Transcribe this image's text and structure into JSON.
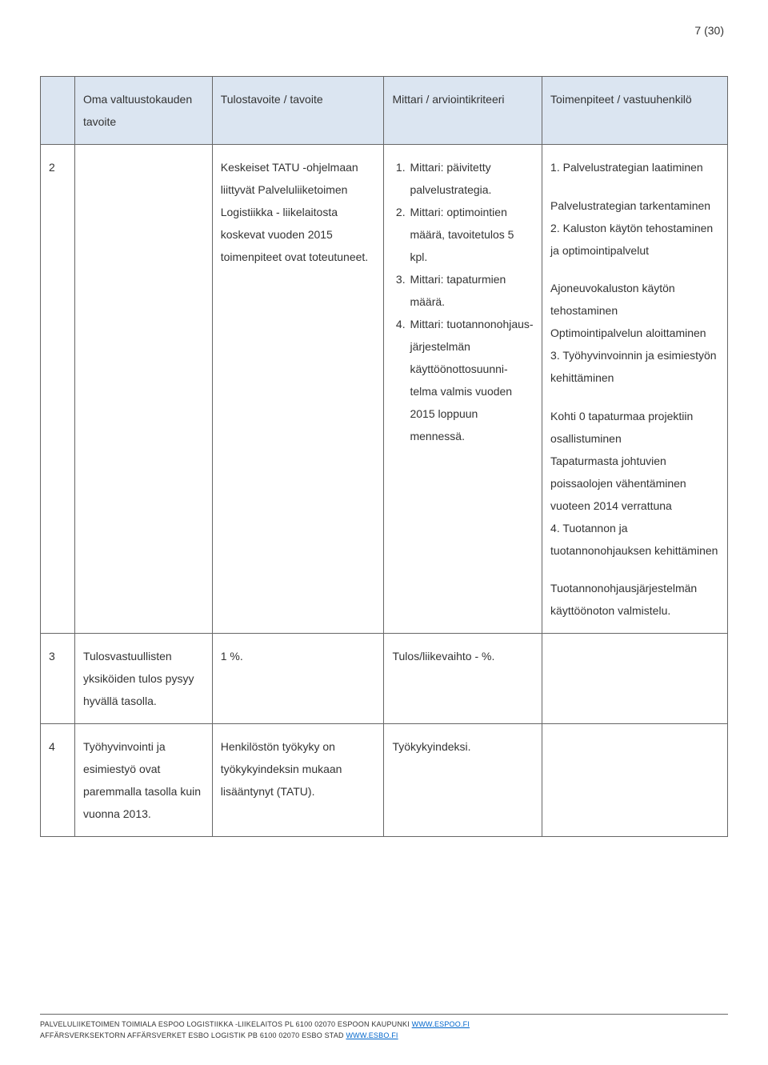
{
  "page_label": "7 (30)",
  "table": {
    "headers": {
      "c0": "",
      "c1": "Oma valtuustokauden tavoite",
      "c2": "Tulostavoite / tavoite",
      "c3": "Mittari / arviointikriteeri",
      "c4": "Toimenpiteet / vastuuhenkilö"
    },
    "row2": {
      "num": "2",
      "col1": "",
      "col2": "Keskeiset TATU -ohjelmaan liittyvät Palveluliiketoimen Logistiikka - liikelaitosta koskevat vuoden 2015 toimenpiteet ovat toteutuneet.",
      "col3_items": [
        "Mittari: päivitetty palvelustrategia.",
        "Mittari: optimointien määrä, tavoitetulos 5 kpl.",
        "Mittari: tapaturmien määrä.",
        "Mittari: tuotannonohjaus-järjestelmän käyttöönottosuunni-telma valmis vuoden 2015 loppuun mennessä."
      ],
      "col4_block1": "1. Palvelustrategian laatiminen",
      "col4_block2": "Palvelustrategian tarkentaminen\n 2. Kaluston käytön tehostaminen ja optimointipalvelut",
      "col4_block3": "Ajoneuvokaluston käytön tehostaminen\nOptimointipalvelun aloittaminen\n3. Työhyvinvoinnin ja esimiestyön kehittäminen",
      "col4_block4": "Kohti 0 tapaturmaa projektiin osallistuminen\nTapaturmasta johtuvien poissaolojen vähentäminen vuoteen 2014 verrattuna\n4. Tuotannon ja tuotannonohjauksen kehittäminen",
      "col4_block5": "Tuotannonohjausjärjestelmän käyttöönoton valmistelu."
    },
    "row3": {
      "num": "3",
      "col1": "Tulosvastuullisten yksiköiden tulos pysyy hyvällä tasolla.",
      "col2": "1 %.",
      "col3": "Tulos/liikevaihto - %.",
      "col4": ""
    },
    "row4": {
      "num": "4",
      "col1": "Työhyvinvointi ja esimiestyö ovat paremmalla tasolla kuin vuonna 2013.",
      "col2": "Henkilöstön työkyky on työkykyindeksin mukaan lisääntynyt (TATU).",
      "col3": "Työkykyindeksi.",
      "col4": ""
    }
  },
  "footer": {
    "line1_pre": "PALVELULIIKETOIMEN TOIMIALA  ESPOO LOGISTIIKKA -LIIKELAITOS  PL 6100  02070 ESPOON KAUPUNKI  ",
    "line1_link": "WWW.ESPOO.FI",
    "line2_pre": "AFFÄRSVERKSEKTORN  AFFÄRSVERKET ESBO LOGISTIK  PB 6100  02070 ESBO STAD  ",
    "line2_link": "WWW.ESBO.FI"
  },
  "colors": {
    "header_bg": "#dbe5f1",
    "border": "#666666",
    "link": "#0066cc",
    "text": "#333333",
    "background": "#ffffff"
  }
}
